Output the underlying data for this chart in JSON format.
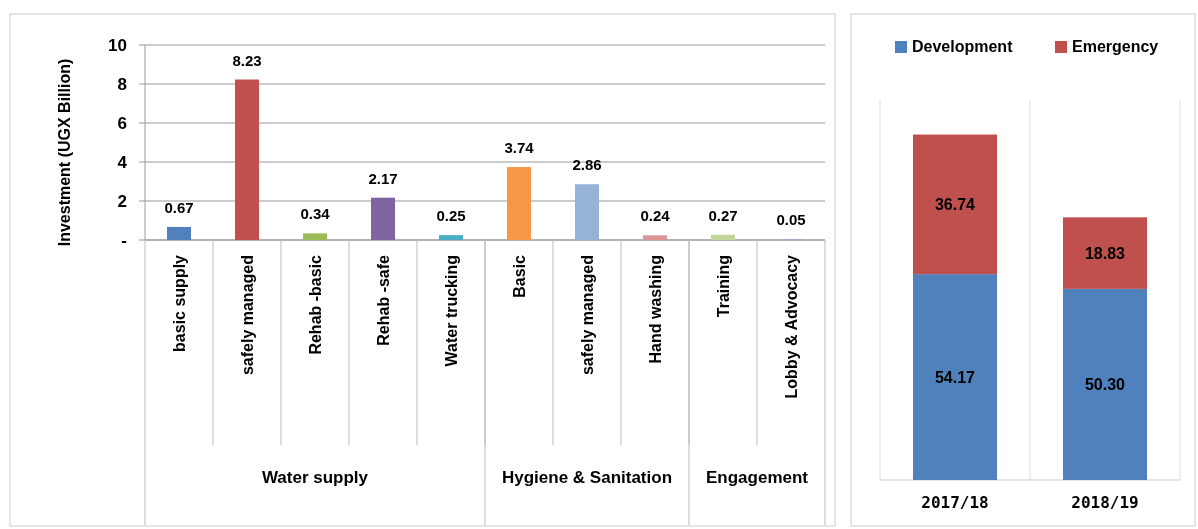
{
  "chart_data": [
    {
      "type": "bar",
      "ylabel": "Investment (UGX Billion)",
      "categories": [
        "basic supply",
        "safely managed",
        "Rehab -basic",
        "Rehab -safe",
        "Water trucking",
        "Basic",
        "safely managed",
        "Hand washing",
        "Training",
        "Lobby & Advocacy"
      ],
      "values": [
        0.67,
        8.23,
        0.34,
        2.17,
        0.25,
        3.74,
        2.86,
        0.24,
        0.27,
        0.05
      ],
      "colors": [
        "#4f81bd",
        "#c0504d",
        "#9bbb59",
        "#8064a2",
        "#4bacc6",
        "#f79646",
        "#95b3d7",
        "#d99694",
        "#c3d69b",
        "#b3a2c7"
      ],
      "ylim": [
        0,
        10
      ],
      "yticks": [
        {
          "value": 0,
          "label": "-"
        },
        2,
        4,
        6,
        8,
        10
      ],
      "grid": "y",
      "data_labels": true,
      "annotations": [
        "Water supply",
        "Hygiene & Sanitation",
        "Engagement"
      ]
    },
    {
      "type": "bar",
      "stacked": true,
      "categories": [
        "2017/18",
        "2018/19"
      ],
      "series": [
        {
          "name": "Development",
          "color": "#4f81bd",
          "values": [
            54.17,
            50.3
          ],
          "value_labels": [
            "54.17",
            "50.30"
          ]
        },
        {
          "name": "Emergency",
          "color": "#c0504d",
          "values": [
            36.74,
            18.83
          ],
          "value_labels": [
            "36.74",
            "18.83"
          ]
        }
      ],
      "legend": "top"
    }
  ]
}
